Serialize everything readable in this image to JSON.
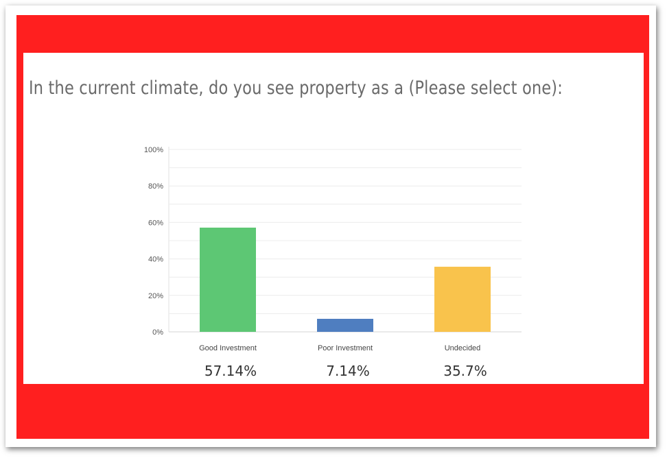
{
  "question": "In the current climate, do you see property as a (Please select one):",
  "chart_data": {
    "type": "bar",
    "categories": [
      "Good Investment",
      "Poor Investment",
      "Undecided"
    ],
    "values": [
      57.14,
      7.14,
      35.7
    ],
    "value_labels": [
      "57.14%",
      "7.14%",
      "35.7%"
    ],
    "bar_colors": [
      "#5dc774",
      "#4f7ec0",
      "#f9c34c"
    ],
    "y_ticks": [
      "0%",
      "20%",
      "40%",
      "60%",
      "80%",
      "100%"
    ],
    "ylim": [
      0,
      100
    ],
    "grid": true
  },
  "colors": {
    "frame": "#ff1f1f",
    "card": "#ffffff",
    "text": "#6a6a6a"
  }
}
